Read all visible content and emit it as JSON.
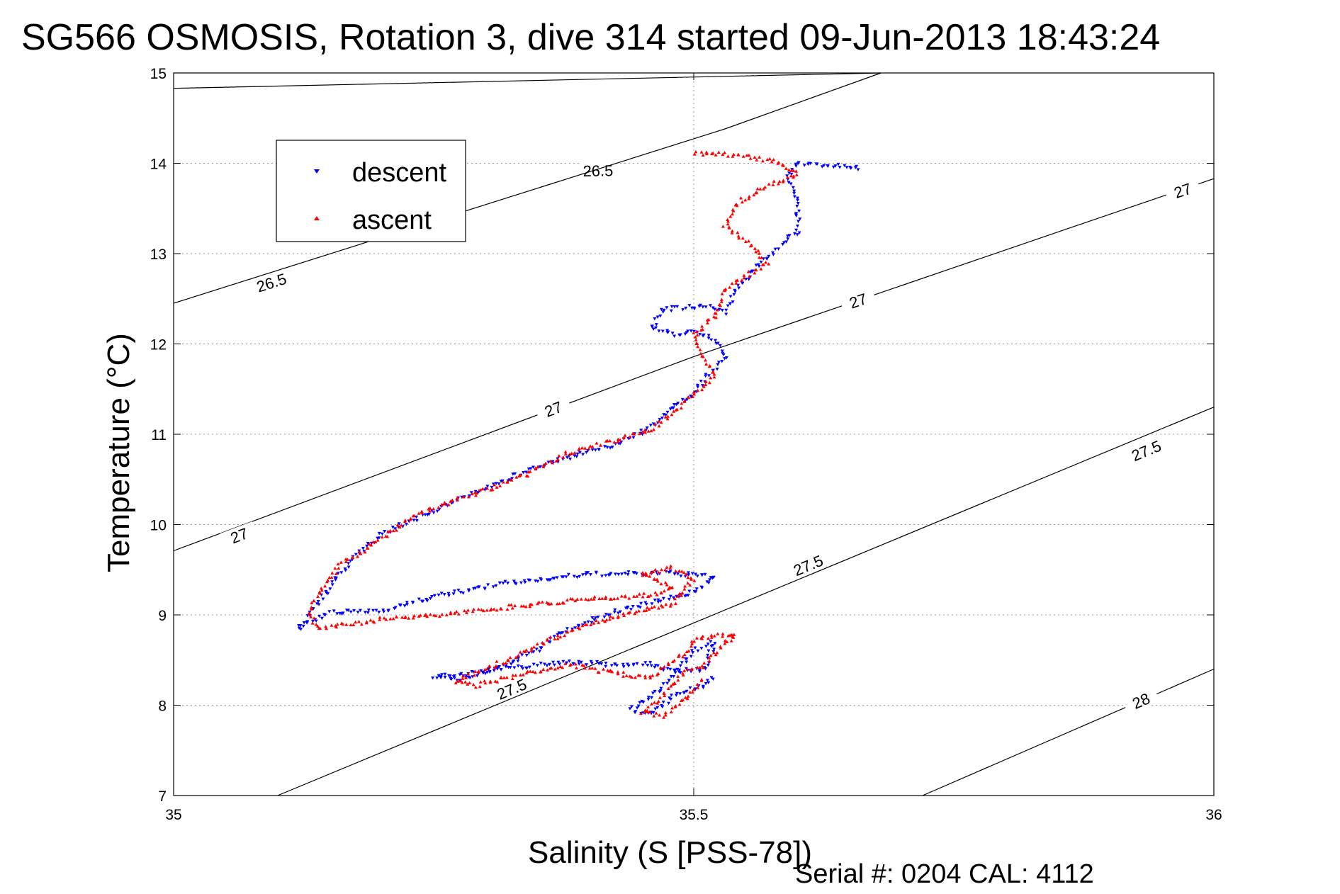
{
  "chart_data": {
    "type": "scatter",
    "title": "SG566 OSMOSIS, Rotation 3, dive 314 started 09-Jun-2013 18:43:24",
    "xlabel": "Salinity (S [PSS-78])",
    "ylabel": "Temperature (°C)",
    "footer": "Serial #: 0204  CAL: 4112",
    "xlim": [
      35,
      36
    ],
    "ylim": [
      7,
      15
    ],
    "xticks": [
      35,
      35.5,
      36
    ],
    "yticks": [
      7,
      8,
      9,
      10,
      11,
      12,
      13,
      14,
      15
    ],
    "xtick_labels": [
      "35",
      "35.5",
      "36"
    ],
    "ytick_labels": [
      "7",
      "8",
      "9",
      "10",
      "11",
      "12",
      "13",
      "14",
      "15"
    ],
    "grid": true,
    "legend_position": "top-left",
    "density_contours": [
      {
        "level": "26.5",
        "points": [
          [
            35.0,
            14.83
          ],
          [
            35.68,
            15.0
          ]
        ],
        "labels": [
          [
            35.408,
            13.92
          ]
        ]
      },
      {
        "level": "26.5",
        "points": [
          [
            35.0,
            12.45
          ],
          [
            35.53,
            14.38
          ],
          [
            35.68,
            15.0
          ]
        ],
        "labels": [
          [
            35.094,
            12.68
          ]
        ]
      },
      {
        "level": "27",
        "points": [
          [
            35.0,
            9.71
          ],
          [
            35.5,
            11.86
          ],
          [
            36.0,
            13.83
          ]
        ],
        "labels": [
          [
            35.063,
            9.88
          ],
          [
            35.365,
            11.28
          ],
          [
            35.658,
            12.48
          ],
          [
            35.97,
            13.7
          ]
        ]
      },
      {
        "level": "27.5",
        "points": [
          [
            35.1,
            7.0
          ],
          [
            35.55,
            9.15
          ],
          [
            36.0,
            11.3
          ]
        ],
        "labels": [
          [
            35.325,
            8.18
          ],
          [
            35.61,
            9.55
          ],
          [
            35.935,
            10.82
          ]
        ]
      },
      {
        "level": "28",
        "points": [
          [
            35.72,
            7.0
          ],
          [
            36.0,
            8.4
          ]
        ],
        "labels": [
          [
            35.93,
            8.05
          ]
        ]
      }
    ],
    "series": [
      {
        "name": "descent",
        "color": "#0000ff",
        "marker": "triangle-down",
        "path": [
          [
            35.66,
            13.95
          ],
          [
            35.6,
            14.0
          ],
          [
            35.59,
            13.85
          ],
          [
            35.6,
            13.55
          ],
          [
            35.6,
            13.25
          ],
          [
            35.58,
            13.05
          ],
          [
            35.56,
            12.85
          ],
          [
            35.54,
            12.6
          ],
          [
            35.53,
            12.35
          ],
          [
            35.51,
            12.42
          ],
          [
            35.47,
            12.38
          ],
          [
            35.46,
            12.18
          ],
          [
            35.48,
            12.1
          ],
          [
            35.5,
            12.15
          ],
          [
            35.52,
            12.05
          ],
          [
            35.53,
            11.85
          ],
          [
            35.51,
            11.6
          ],
          [
            35.5,
            11.45
          ],
          [
            35.48,
            11.3
          ],
          [
            35.46,
            11.1
          ],
          [
            35.44,
            10.95
          ],
          [
            35.4,
            10.8
          ],
          [
            35.35,
            10.65
          ],
          [
            35.3,
            10.4
          ],
          [
            35.25,
            10.15
          ],
          [
            35.2,
            9.9
          ],
          [
            35.17,
            9.6
          ],
          [
            35.15,
            9.3
          ],
          [
            35.13,
            9.0
          ],
          [
            35.12,
            8.85
          ],
          [
            35.15,
            9.02
          ],
          [
            35.2,
            9.05
          ],
          [
            35.25,
            9.2
          ],
          [
            35.32,
            9.35
          ],
          [
            35.4,
            9.45
          ],
          [
            35.48,
            9.46
          ],
          [
            35.52,
            9.42
          ],
          [
            35.5,
            9.25
          ],
          [
            35.48,
            9.2
          ],
          [
            35.42,
            9.02
          ],
          [
            35.38,
            8.85
          ],
          [
            35.35,
            8.62
          ],
          [
            35.32,
            8.45
          ],
          [
            35.3,
            8.36
          ],
          [
            35.27,
            8.28
          ],
          [
            35.25,
            8.32
          ],
          [
            35.28,
            8.35
          ],
          [
            35.33,
            8.42
          ],
          [
            35.38,
            8.48
          ],
          [
            35.42,
            8.45
          ],
          [
            35.46,
            8.45
          ],
          [
            35.48,
            8.38
          ],
          [
            35.51,
            8.4
          ],
          [
            35.52,
            8.7
          ],
          [
            35.5,
            8.6
          ],
          [
            35.48,
            8.3
          ],
          [
            35.46,
            8.1
          ],
          [
            35.44,
            7.95
          ],
          [
            35.46,
            7.9
          ],
          [
            35.48,
            8.1
          ],
          [
            35.51,
            8.22
          ],
          [
            35.52,
            8.35
          ]
        ]
      },
      {
        "name": "ascent",
        "color": "#ff0000",
        "marker": "triangle-up",
        "path": [
          [
            35.5,
            14.12
          ],
          [
            35.55,
            14.08
          ],
          [
            35.58,
            14.02
          ],
          [
            35.6,
            13.88
          ],
          [
            35.57,
            13.75
          ],
          [
            35.54,
            13.55
          ],
          [
            35.53,
            13.3
          ],
          [
            35.56,
            13.05
          ],
          [
            35.57,
            12.9
          ],
          [
            35.55,
            12.75
          ],
          [
            35.53,
            12.6
          ],
          [
            35.52,
            12.3
          ],
          [
            35.5,
            12.1
          ],
          [
            35.51,
            11.85
          ],
          [
            35.52,
            11.65
          ],
          [
            35.5,
            11.45
          ],
          [
            35.48,
            11.25
          ],
          [
            35.46,
            11.05
          ],
          [
            35.42,
            10.92
          ],
          [
            35.38,
            10.8
          ],
          [
            35.34,
            10.55
          ],
          [
            35.28,
            10.3
          ],
          [
            35.23,
            10.1
          ],
          [
            35.2,
            9.85
          ],
          [
            35.16,
            9.55
          ],
          [
            35.14,
            9.25
          ],
          [
            35.13,
            9.0
          ],
          [
            35.14,
            8.85
          ],
          [
            35.2,
            8.95
          ],
          [
            35.27,
            9.02
          ],
          [
            35.33,
            9.1
          ],
          [
            35.4,
            9.18
          ],
          [
            35.46,
            9.22
          ],
          [
            35.48,
            9.3
          ],
          [
            35.45,
            9.45
          ],
          [
            35.48,
            9.52
          ],
          [
            35.5,
            9.4
          ],
          [
            35.48,
            9.12
          ],
          [
            35.44,
            9.02
          ],
          [
            35.4,
            8.9
          ],
          [
            35.36,
            8.72
          ],
          [
            35.33,
            8.55
          ],
          [
            35.3,
            8.4
          ],
          [
            35.27,
            8.25
          ],
          [
            35.29,
            8.22
          ],
          [
            35.34,
            8.35
          ],
          [
            35.38,
            8.45
          ],
          [
            35.41,
            8.38
          ],
          [
            35.46,
            8.3
          ],
          [
            35.47,
            8.42
          ],
          [
            35.49,
            8.55
          ],
          [
            35.5,
            8.72
          ],
          [
            35.54,
            8.8
          ],
          [
            35.51,
            8.45
          ],
          [
            35.49,
            8.35
          ],
          [
            35.47,
            8.1
          ],
          [
            35.45,
            7.92
          ],
          [
            35.47,
            7.88
          ],
          [
            35.49,
            8.05
          ],
          [
            35.51,
            8.3
          ]
        ]
      }
    ]
  }
}
